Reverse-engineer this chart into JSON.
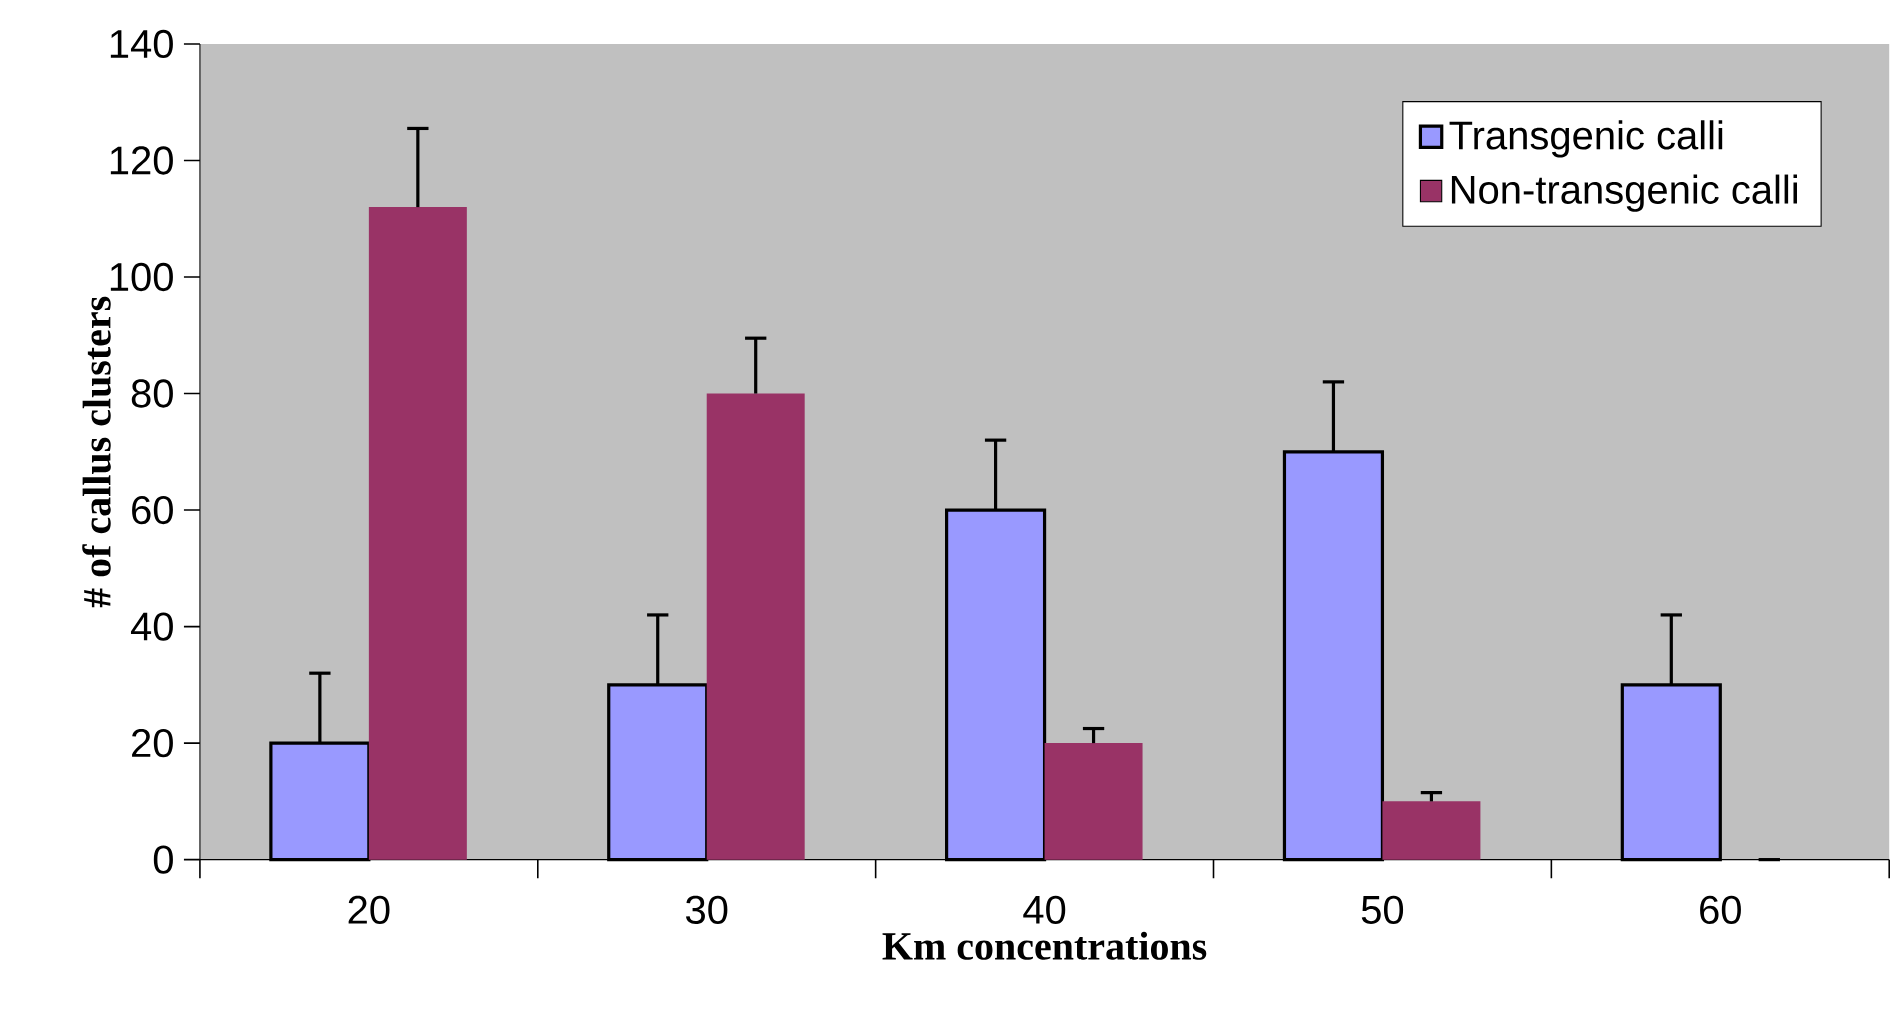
{
  "chart_data": {
    "type": "bar",
    "xlabel": "Km concentrations",
    "ylabel": "# of callus  clusters",
    "categories": [
      "20",
      "30",
      "40",
      "50",
      "60"
    ],
    "series": [
      {
        "name": "Transgenic calli",
        "color": "#9999ff",
        "values": [
          20,
          30,
          60,
          70,
          30
        ],
        "errors": [
          12,
          12,
          12,
          12,
          12
        ]
      },
      {
        "name": "Non-transgenic calli",
        "color": "#993366",
        "values": [
          112,
          80,
          20,
          10,
          0
        ],
        "errors": [
          13.5,
          9.5,
          2.5,
          1.5,
          0
        ]
      }
    ],
    "ylim": [
      0,
      140
    ],
    "yticks": [
      0,
      20,
      40,
      60,
      80,
      100,
      120,
      140
    ],
    "grid": false,
    "legend": "top right"
  }
}
